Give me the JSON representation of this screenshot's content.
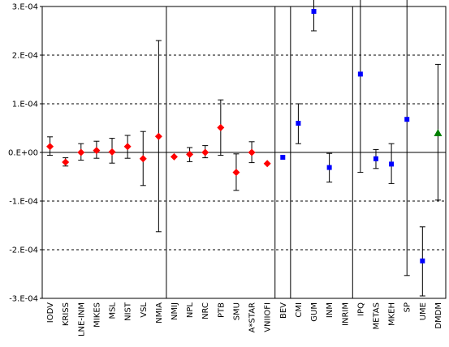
{
  "chart_data": {
    "type": "scatter",
    "ylim": [
      -0.0003,
      0.0003
    ],
    "yticks": [
      -0.0003,
      -0.0002,
      -0.0001,
      0,
      0.0001,
      0.0002,
      0.0003
    ],
    "ytick_labels": [
      "-3.E-04",
      "-2.E-04",
      "-1.E-04",
      "0.E+00",
      "1.E-04",
      "2.E-04",
      "3.E-04"
    ],
    "grid": "horizontal-dashed",
    "categories": [
      "IODV",
      "KRISS",
      "LNE-INM",
      "MIKES",
      "MSL",
      "NIST",
      "VSL",
      "NMIA",
      "NMIJ",
      "NPL",
      "NRC",
      "PTB",
      "SMU",
      "A*STAR",
      "VNIIOFI",
      "BEV",
      "CMI",
      "GUM",
      "INM",
      "INRIM",
      "IPQ",
      "METAS",
      "MKEH",
      "SP",
      "UME",
      "DMDM"
    ],
    "separators_after": [
      "NMIA",
      "VNIIOFI",
      "BEV",
      "INRIM"
    ],
    "series": [
      {
        "marker": "diamond",
        "color": "#ff0000",
        "points": [
          {
            "cat": "IODV",
            "y": 1.2e-05,
            "lo": -6e-06,
            "hi": 3.2e-05
          },
          {
            "cat": "KRISS",
            "y": -2e-05,
            "lo": -2.8e-05,
            "hi": -1.1e-05
          },
          {
            "cat": "LNE-INM",
            "y": 0.0,
            "lo": -1.6e-05,
            "hi": 1.8e-05
          },
          {
            "cat": "MIKES",
            "y": 4e-06,
            "lo": -1.2e-05,
            "hi": 2.3e-05
          },
          {
            "cat": "MSL",
            "y": 1e-06,
            "lo": -2.2e-05,
            "hi": 2.9e-05
          },
          {
            "cat": "NIST",
            "y": 1.2e-05,
            "lo": -1.2e-05,
            "hi": 3.5e-05
          },
          {
            "cat": "VSL",
            "y": -1.3e-05,
            "lo": -6.8e-05,
            "hi": 4.3e-05
          },
          {
            "cat": "NMIA",
            "y": 3.3e-05,
            "lo": -0.000163,
            "hi": 0.00023
          },
          {
            "cat": "NMIJ",
            "y": -9e-06,
            "lo": null,
            "hi": null
          },
          {
            "cat": "NPL",
            "y": -4e-06,
            "lo": -1.9e-05,
            "hi": 1e-05
          },
          {
            "cat": "NRC",
            "y": 0.0,
            "lo": -1.1e-05,
            "hi": 1.4e-05
          },
          {
            "cat": "PTB",
            "y": 5.1e-05,
            "lo": -6e-06,
            "hi": 0.000108
          },
          {
            "cat": "SMU",
            "y": -4.1e-05,
            "lo": -7.8e-05,
            "hi": -3e-06
          },
          {
            "cat": "A*STAR",
            "y": 0.0,
            "lo": -2.1e-05,
            "hi": 2.2e-05
          },
          {
            "cat": "VNIIOFI",
            "y": -2.3e-05,
            "lo": null,
            "hi": null
          }
        ]
      },
      {
        "marker": "square",
        "color": "#0000ff",
        "points": [
          {
            "cat": "BEV",
            "y": -1e-05,
            "lo": null,
            "hi": null
          },
          {
            "cat": "CMI",
            "y": 6e-05,
            "lo": 1.8e-05,
            "hi": 0.0001
          },
          {
            "cat": "GUM",
            "y": 0.00029,
            "lo": 0.00025,
            "hi": 0.000328
          },
          {
            "cat": "INM",
            "y": -3.1e-05,
            "lo": -6.1e-05,
            "hi": -2e-06
          },
          {
            "cat": "IPQ",
            "y": 0.000161,
            "lo": -4.1e-05,
            "hi": 0.000363
          },
          {
            "cat": "METAS",
            "y": -1.3e-05,
            "lo": -3.3e-05,
            "hi": 6e-06
          },
          {
            "cat": "MKEH",
            "y": -2.4e-05,
            "lo": -6.4e-05,
            "hi": 1.8e-05
          },
          {
            "cat": "SP",
            "y": 6.8e-05,
            "lo": -0.000253,
            "hi": 0.000363
          },
          {
            "cat": "UME",
            "y": -0.000223,
            "lo": -0.000295,
            "hi": -0.000153
          }
        ]
      },
      {
        "marker": "triangle",
        "color": "#008000",
        "points": [
          {
            "cat": "DMDM",
            "y": 4e-05,
            "lo": -9.8e-05,
            "hi": 0.000181
          }
        ]
      }
    ]
  }
}
